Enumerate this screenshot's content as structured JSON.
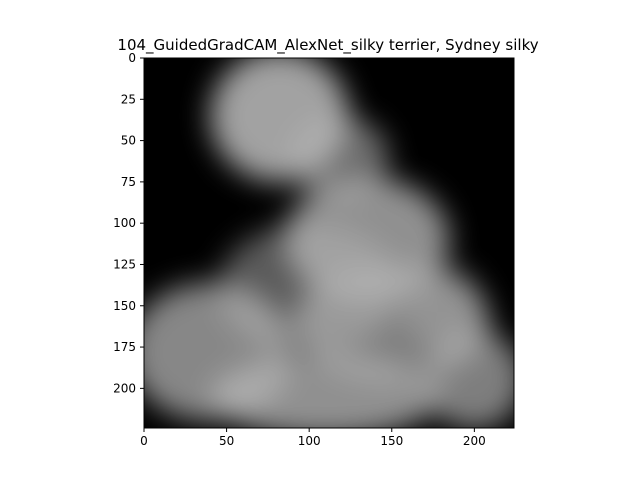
{
  "chart_data": {
    "type": "heatmap",
    "title": "104_GuidedGradCAM_AlexNet_silky terrier, Sydney silky",
    "xlabel": "",
    "ylabel": "",
    "xlim": [
      0,
      224
    ],
    "ylim": [
      224,
      0
    ],
    "x_ticks": [
      0,
      50,
      100,
      150,
      200
    ],
    "y_ticks": [
      0,
      25,
      50,
      75,
      100,
      125,
      150,
      175,
      200
    ],
    "grid": false,
    "legend": "none",
    "colors": {
      "background": "#000000",
      "highlight": "#b4b4b4"
    },
    "regions": [
      {
        "x": 82,
        "y": 35,
        "rx": 42,
        "ry": 40,
        "intensity": 0.9
      },
      {
        "x": 118,
        "y": 60,
        "rx": 30,
        "ry": 25,
        "intensity": 0.6
      },
      {
        "x": 135,
        "y": 110,
        "rx": 50,
        "ry": 38,
        "intensity": 0.8
      },
      {
        "x": 40,
        "y": 178,
        "rx": 50,
        "ry": 42,
        "intensity": 0.75
      },
      {
        "x": 150,
        "y": 160,
        "rx": 60,
        "ry": 35,
        "intensity": 0.7
      },
      {
        "x": 110,
        "y": 205,
        "rx": 70,
        "ry": 25,
        "intensity": 0.8
      },
      {
        "x": 200,
        "y": 195,
        "rx": 30,
        "ry": 30,
        "intensity": 0.7
      },
      {
        "x": 100,
        "y": 140,
        "rx": 55,
        "ry": 40,
        "intensity": 0.5
      },
      {
        "x": 180,
        "y": 150,
        "rx": 25,
        "ry": 25,
        "intensity": 0.4
      }
    ]
  }
}
